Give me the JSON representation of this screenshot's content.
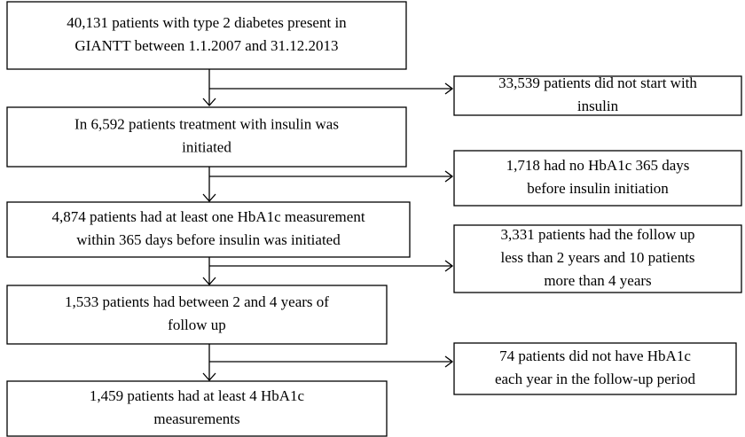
{
  "nodes": [
    {
      "lines": [
        "40,131 patients with type 2 diabetes present in",
        "GIANTT between 1.1.2007 and 31.12.2013"
      ]
    },
    {
      "lines": [
        "33,539 patients did not start with",
        "insulin"
      ]
    },
    {
      "lines": [
        "In 6,592 patients treatment with insulin was",
        "initiated"
      ]
    },
    {
      "lines": [
        "1,718 had no HbA1c 365 days",
        "before insulin initiation"
      ]
    },
    {
      "lines": [
        "4,874 patients had at least one HbA1c measurement",
        "within 365 days before insulin was initiated"
      ]
    },
    {
      "lines": [
        "3,331 patients had the follow up",
        "less than 2 years and 10 patients",
        "more than 4 years"
      ]
    },
    {
      "lines": [
        "1,533 patients had between 2 and 4 years of",
        "follow up"
      ]
    },
    {
      "lines": [
        "74 patients did not have HbA1c",
        "each year in the follow-up period"
      ]
    },
    {
      "lines": [
        "1,459 patients had at least 4 HbA1c",
        "measurements"
      ]
    }
  ]
}
